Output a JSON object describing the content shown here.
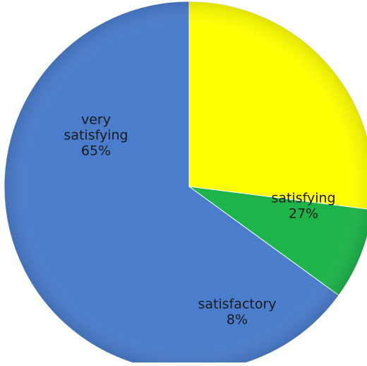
{
  "chart_data": {
    "type": "pie",
    "title": "",
    "start": "top",
    "direction": "clockwise",
    "slices": [
      {
        "label_lines": [
          "satisfying"
        ],
        "value": 27,
        "value_label": "27%",
        "color": "#ffff00"
      },
      {
        "label_lines": [
          "satisfactory"
        ],
        "value": 8,
        "value_label": "8%",
        "color": "#1db44a"
      },
      {
        "label_lines": [
          "very",
          "satisfying"
        ],
        "value": 65,
        "value_label": "65%",
        "color": "#4a7dcc"
      }
    ]
  }
}
